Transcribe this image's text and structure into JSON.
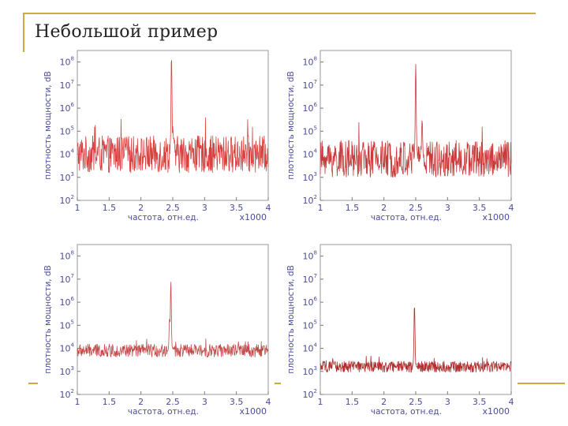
{
  "slide": {
    "title": "Небольшой пример"
  },
  "chart_data": [
    {
      "type": "line",
      "xlabel": "частота, отн.ед.",
      "ylabel": "плотность мощности, dB",
      "x_multiplier": "x1000",
      "xlim": [
        1,
        4
      ],
      "x_ticks": [
        "1",
        "1.5",
        "2",
        "2.5",
        "3",
        "3.5",
        "4"
      ],
      "y_log": true,
      "ylim_exp": [
        2,
        8.5
      ],
      "y_tick_exps": [
        "2",
        "3",
        "4",
        "5",
        "6",
        "7",
        "8"
      ],
      "grid": false,
      "line_color": "#d94040",
      "noise_floor_exp": 4.0,
      "noise_spread_exp": 1.0,
      "peaks": [
        {
          "x": 2.48,
          "exp": 8.3
        },
        {
          "x": 2.5,
          "exp": 5.2
        }
      ]
    },
    {
      "type": "line",
      "xlabel": "частота, отн.ед.",
      "ylabel": "плотность мощности, dB",
      "x_multiplier": "x1000",
      "xlim": [
        1,
        4
      ],
      "x_ticks": [
        "1",
        "1.5",
        "2",
        "2.5",
        "3",
        "3.5",
        "4"
      ],
      "y_log": true,
      "ylim_exp": [
        2,
        8.5
      ],
      "y_tick_exps": [
        "2",
        "3",
        "4",
        "5",
        "6",
        "7",
        "8"
      ],
      "grid": false,
      "line_color": "#c93a3a",
      "noise_floor_exp": 3.8,
      "noise_spread_exp": 1.0,
      "peaks": [
        {
          "x": 2.5,
          "exp": 7.9
        },
        {
          "x": 2.6,
          "exp": 5.5
        }
      ]
    },
    {
      "type": "line",
      "xlabel": "частота, отн.ед.",
      "ylabel": "плотность мощности, dB",
      "x_multiplier": "x1000",
      "xlim": [
        1,
        4
      ],
      "x_ticks": [
        "1",
        "1.5",
        "2",
        "2.5",
        "3",
        "3.5",
        "4"
      ],
      "y_log": true,
      "ylim_exp": [
        2,
        8.5
      ],
      "y_tick_exps": [
        "2",
        "3",
        "4",
        "5",
        "6",
        "7",
        "8"
      ],
      "grid": false,
      "line_color": "#c54a4a",
      "noise_floor_exp": 3.9,
      "noise_spread_exp": 0.35,
      "peaks": [
        {
          "x": 2.47,
          "exp": 6.9
        },
        {
          "x": 2.45,
          "exp": 5.3
        }
      ]
    },
    {
      "type": "line",
      "xlabel": "частота, отн.ед.",
      "ylabel": "плотность мощности, dB",
      "x_multiplier": "x1000",
      "xlim": [
        1,
        4
      ],
      "x_ticks": [
        "1",
        "1.5",
        "2",
        "2.5",
        "3",
        "3.5",
        "4"
      ],
      "y_log": true,
      "ylim_exp": [
        2,
        8.5
      ],
      "y_tick_exps": [
        "2",
        "3",
        "4",
        "5",
        "6",
        "7",
        "8"
      ],
      "grid": false,
      "line_color": "#b02e2e",
      "noise_floor_exp": 3.2,
      "noise_spread_exp": 0.3,
      "peaks": [
        {
          "x": 2.48,
          "exp": 5.9
        }
      ]
    }
  ]
}
